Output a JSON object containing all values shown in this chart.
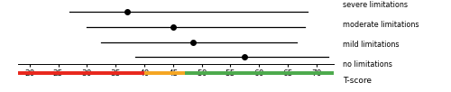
{
  "categories": [
    "severe limitations",
    "moderate limitations",
    "mild limitations",
    "no limitations"
  ],
  "means": [
    37.0,
    45.0,
    48.5,
    57.5
  ],
  "ci_low": [
    27.0,
    30.0,
    32.5,
    38.5
  ],
  "ci_high": [
    68.5,
    68.0,
    66.5,
    72.0
  ],
  "xmin": 18,
  "xmax": 73,
  "xticks": [
    20,
    25,
    30,
    35,
    40,
    45,
    50,
    55,
    60,
    65,
    70
  ],
  "xlabel2": "T-score",
  "color_segments": [
    {
      "xstart": 18,
      "xend": 40,
      "color": "#e8281e"
    },
    {
      "xstart": 40,
      "xend": 47,
      "color": "#f5a623"
    },
    {
      "xstart": 47,
      "xend": 73,
      "color": "#4daa4d"
    }
  ],
  "label_fontsize": 5.8,
  "tick_fontsize": 6.5,
  "xlabel_fontsize": 7.0,
  "tscore_fontsize": 6.5
}
